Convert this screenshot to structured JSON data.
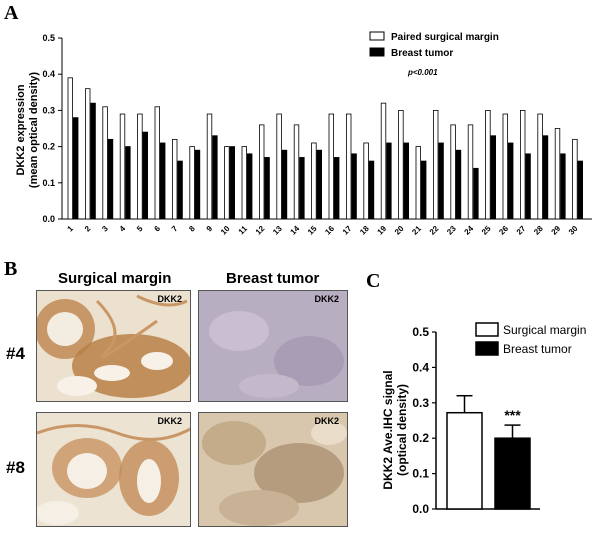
{
  "panels": {
    "a": "A",
    "b": "B",
    "c": "C"
  },
  "panel_b": {
    "col_titles": [
      "Surgical margin",
      "Breast tumor"
    ],
    "row_labels": [
      "#4",
      "#8"
    ],
    "image_tag": "DKK2"
  },
  "colors": {
    "margin_fill": "#ffffff",
    "tumor_fill": "#000000",
    "ihc_stroma": "#e7d7bf",
    "ihc_brown": "#b9844c",
    "ihc_tumor": "#b6a8bd"
  },
  "chart_data": [
    {
      "type": "bar",
      "ylabel": [
        "DKK2 expression",
        "(mean optical density)"
      ],
      "ylim": [
        0.0,
        0.5
      ],
      "yticks": [
        "0.0",
        "0.1",
        "0.2",
        "0.3",
        "0.4",
        "0.5"
      ],
      "categories": [
        "1",
        "2",
        "3",
        "4",
        "5",
        "6",
        "7",
        "8",
        "9",
        "10",
        "11",
        "12",
        "13",
        "14",
        "15",
        "16",
        "17",
        "18",
        "19",
        "20",
        "21",
        "22",
        "23",
        "24",
        "25",
        "26",
        "27",
        "28",
        "29",
        "30"
      ],
      "legend_position": "top-right",
      "annotation": "p<0.001",
      "series": [
        {
          "name": "Paired surgical margin",
          "values": [
            0.39,
            0.36,
            0.31,
            0.29,
            0.29,
            0.31,
            0.22,
            0.2,
            0.29,
            0.2,
            0.2,
            0.26,
            0.29,
            0.26,
            0.21,
            0.29,
            0.29,
            0.21,
            0.32,
            0.3,
            0.2,
            0.3,
            0.26,
            0.26,
            0.3,
            0.29,
            0.3,
            0.29,
            0.25,
            0.22
          ]
        },
        {
          "name": "Breast tumor",
          "values": [
            0.28,
            0.32,
            0.22,
            0.2,
            0.24,
            0.21,
            0.16,
            0.19,
            0.23,
            0.2,
            0.18,
            0.17,
            0.19,
            0.17,
            0.19,
            0.17,
            0.18,
            0.16,
            0.21,
            0.21,
            0.16,
            0.21,
            0.19,
            0.14,
            0.23,
            0.21,
            0.18,
            0.23,
            0.18,
            0.16
          ]
        }
      ]
    },
    {
      "type": "bar",
      "ylabel": [
        "DKK2 Ave.IHC signal",
        "(optical density)"
      ],
      "ylim": [
        0.0,
        0.5
      ],
      "yticks": [
        "0.0",
        "0.1",
        "0.2",
        "0.3",
        "0.4",
        "0.5"
      ],
      "legend_position": "top-right",
      "series": [
        {
          "name": "Surgical margin",
          "value": 0.272,
          "error": 0.048
        },
        {
          "name": "Breast tumor",
          "value": 0.2,
          "error": 0.037,
          "significance": "***"
        }
      ]
    }
  ]
}
